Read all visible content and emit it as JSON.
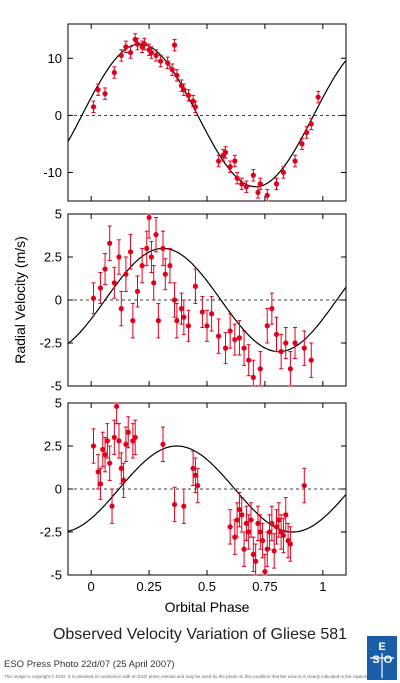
{
  "chart_data": [
    {
      "type": "scatter",
      "panel": "top",
      "xlim": [
        -0.1,
        1.1
      ],
      "ylim": [
        -15,
        16
      ],
      "yticks": [
        -10,
        0,
        10
      ],
      "ytick_labels": [
        "-10",
        "0",
        "10"
      ],
      "zero_line": "dashed",
      "model": {
        "amplitude": 12.5,
        "offset": -0.04
      },
      "points": [
        [
          0.01,
          1.5,
          1
        ],
        [
          0.03,
          4.5,
          1
        ],
        [
          0.06,
          3.8,
          1
        ],
        [
          0.1,
          7.5,
          1
        ],
        [
          0.13,
          10.5,
          1
        ],
        [
          0.15,
          12,
          1
        ],
        [
          0.17,
          11,
          1
        ],
        [
          0.19,
          13.3,
          1
        ],
        [
          0.2,
          12.5,
          1
        ],
        [
          0.22,
          12,
          1
        ],
        [
          0.23,
          12.5,
          1
        ],
        [
          0.25,
          11.5,
          1
        ],
        [
          0.26,
          11,
          1
        ],
        [
          0.28,
          10.5,
          1
        ],
        [
          0.3,
          9.5,
          1
        ],
        [
          0.33,
          9.2,
          1
        ],
        [
          0.35,
          8,
          1
        ],
        [
          0.36,
          12.3,
          1
        ],
        [
          0.37,
          7,
          1
        ],
        [
          0.39,
          5.2,
          1
        ],
        [
          0.4,
          4.5,
          1
        ],
        [
          0.42,
          3.5,
          1
        ],
        [
          0.44,
          2.5,
          1
        ],
        [
          0.45,
          1.5,
          1
        ],
        [
          0.55,
          -8,
          1
        ],
        [
          0.57,
          -7,
          1
        ],
        [
          0.58,
          -6.5,
          1
        ],
        [
          0.6,
          -9,
          1
        ],
        [
          0.62,
          -8,
          1
        ],
        [
          0.63,
          -11,
          1
        ],
        [
          0.65,
          -12,
          1
        ],
        [
          0.67,
          -12.5,
          1
        ],
        [
          0.7,
          -10.5,
          1
        ],
        [
          0.72,
          -13.5,
          1
        ],
        [
          0.73,
          -12,
          1
        ],
        [
          0.76,
          -14,
          1
        ],
        [
          0.8,
          -12,
          1
        ],
        [
          0.83,
          -10,
          1
        ],
        [
          0.88,
          -8,
          1
        ],
        [
          0.91,
          -5,
          1
        ],
        [
          0.93,
          -3,
          1
        ],
        [
          0.95,
          -1.5,
          1
        ],
        [
          0.98,
          3.2,
          1
        ]
      ]
    },
    {
      "type": "scatter",
      "panel": "middle",
      "xlim": [
        -0.1,
        1.1
      ],
      "ylim": [
        -5,
        5
      ],
      "yticks": [
        -5,
        -2.5,
        0,
        2.5,
        5
      ],
      "ytick_labels": [
        "-5",
        "-2.5",
        "0",
        "2.5",
        "5"
      ],
      "zero_line": "dashed",
      "model": {
        "amplitude": 3.0,
        "offset": 0.06
      },
      "points": [
        [
          0.01,
          0.1,
          0.9
        ],
        [
          0.04,
          0.7,
          0.9
        ],
        [
          0.06,
          1.8,
          0.9
        ],
        [
          0.08,
          3.3,
          1
        ],
        [
          0.1,
          1,
          0.9
        ],
        [
          0.12,
          2.5,
          1
        ],
        [
          0.13,
          -0.5,
          1
        ],
        [
          0.15,
          1.5,
          1
        ],
        [
          0.17,
          2.8,
          1
        ],
        [
          0.18,
          -1.2,
          1
        ],
        [
          0.2,
          0.5,
          0.9
        ],
        [
          0.22,
          2,
          1
        ],
        [
          0.24,
          3,
          1
        ],
        [
          0.25,
          4.8,
          1.2
        ],
        [
          0.26,
          2.5,
          0.9
        ],
        [
          0.27,
          1,
          1
        ],
        [
          0.28,
          3.8,
          1
        ],
        [
          0.29,
          -1.2,
          1
        ],
        [
          0.31,
          3,
          1
        ],
        [
          0.32,
          1.5,
          0.9
        ],
        [
          0.34,
          2,
          1
        ],
        [
          0.36,
          0,
          1
        ],
        [
          0.37,
          -1.2,
          1
        ],
        [
          0.39,
          -0.5,
          0.9
        ],
        [
          0.4,
          -1,
          1
        ],
        [
          0.42,
          -1.5,
          0.9
        ],
        [
          0.45,
          0.8,
          1
        ],
        [
          0.48,
          -0.7,
          0.9
        ],
        [
          0.5,
          -1.5,
          0.9
        ],
        [
          0.52,
          -0.8,
          1
        ],
        [
          0.55,
          -2.1,
          1
        ],
        [
          0.58,
          -2.8,
          0.9
        ],
        [
          0.6,
          -1.8,
          1
        ],
        [
          0.62,
          -2.3,
          0.9
        ],
        [
          0.64,
          -2.2,
          1
        ],
        [
          0.66,
          -2.8,
          1
        ],
        [
          0.68,
          -3.5,
          0.9
        ],
        [
          0.7,
          -4.5,
          1
        ],
        [
          0.73,
          -4,
          1
        ],
        [
          0.76,
          -1.5,
          1
        ],
        [
          0.78,
          -0.5,
          0.9
        ],
        [
          0.8,
          -2,
          1
        ],
        [
          0.82,
          -3,
          1
        ],
        [
          0.84,
          -2.5,
          0.9
        ],
        [
          0.86,
          -4,
          1
        ],
        [
          0.88,
          -2.5,
          0.9
        ],
        [
          0.92,
          -2.8,
          1
        ],
        [
          0.95,
          -3.5,
          1
        ]
      ]
    },
    {
      "type": "scatter",
      "panel": "bottom",
      "xlim": [
        -0.1,
        1.1
      ],
      "ylim": [
        -5,
        5
      ],
      "yticks": [
        -5,
        -2.5,
        0,
        2.5,
        5
      ],
      "ytick_labels": [
        "-5",
        "-2.5",
        "0",
        "2.5",
        "5"
      ],
      "xticks": [
        0,
        0.25,
        0.5,
        0.75,
        1
      ],
      "xtick_labels": [
        "0",
        "0.25",
        "0.5",
        "0.75",
        "1"
      ],
      "zero_line": "dashed",
      "model": {
        "amplitude": 2.5,
        "offset": 0.12
      },
      "points": [
        [
          0.01,
          2.5,
          1
        ],
        [
          0.03,
          1,
          1
        ],
        [
          0.04,
          0.3,
          0.9
        ],
        [
          0.05,
          2.3,
          1
        ],
        [
          0.06,
          2,
          1
        ],
        [
          0.07,
          2.8,
          1
        ],
        [
          0.08,
          1.5,
          1
        ],
        [
          0.09,
          -1,
          1
        ],
        [
          0.1,
          3,
          1
        ],
        [
          0.11,
          4.8,
          1
        ],
        [
          0.12,
          2.8,
          1
        ],
        [
          0.13,
          1.2,
          0.9
        ],
        [
          0.14,
          0.5,
          1
        ],
        [
          0.15,
          2.6,
          1
        ],
        [
          0.16,
          3.3,
          0.9
        ],
        [
          0.18,
          2.8,
          1
        ],
        [
          0.19,
          3,
          1
        ],
        [
          0.31,
          2.6,
          1
        ],
        [
          0.36,
          -0.9,
          1
        ],
        [
          0.4,
          -1,
          1
        ],
        [
          0.44,
          1.2,
          1
        ],
        [
          0.45,
          0.8,
          1
        ],
        [
          0.46,
          0.2,
          1
        ],
        [
          0.6,
          -2.2,
          1
        ],
        [
          0.62,
          -2.8,
          1
        ],
        [
          0.63,
          -1.8,
          1
        ],
        [
          0.64,
          -1.2,
          1
        ],
        [
          0.65,
          -1.5,
          1
        ],
        [
          0.66,
          -3.5,
          1
        ],
        [
          0.67,
          -2,
          1
        ],
        [
          0.68,
          -2.5,
          1
        ],
        [
          0.69,
          -1.8,
          1
        ],
        [
          0.7,
          -3.8,
          1
        ],
        [
          0.71,
          -4.2,
          1
        ],
        [
          0.72,
          -2,
          1
        ],
        [
          0.73,
          -2.5,
          1
        ],
        [
          0.74,
          -3,
          1
        ],
        [
          0.75,
          -4.8,
          1
        ],
        [
          0.76,
          -3.5,
          1
        ],
        [
          0.77,
          -2.5,
          1
        ],
        [
          0.78,
          -2,
          1
        ],
        [
          0.79,
          -3.6,
          1
        ],
        [
          0.8,
          -2.2,
          1
        ],
        [
          0.81,
          -1.8,
          1
        ],
        [
          0.82,
          -2.5,
          1
        ],
        [
          0.83,
          -2.7,
          1
        ],
        [
          0.84,
          -1.5,
          1
        ],
        [
          0.85,
          -3,
          1
        ],
        [
          0.86,
          -3.2,
          1
        ],
        [
          0.92,
          0.2,
          1
        ]
      ]
    }
  ],
  "ylabel": "Radial Velocity (m/s)",
  "xlabel": "Orbital Phase",
  "title": "Observed Velocity Variation of Gliese 581",
  "credit": "ESO Press Photo 22d/07 (25 April 2007)",
  "fine_print": "This image is copyright © ESO. It is released in connection with an ESO press release and may be used by the press on the condition that the source is clearly indicated in the caption.",
  "logo": {
    "text": "ESO",
    "icon": "eso-logo-icon"
  },
  "colors": {
    "points": "#e0001b",
    "curve": "#000000",
    "logo_bg": "#1a5ea8"
  }
}
